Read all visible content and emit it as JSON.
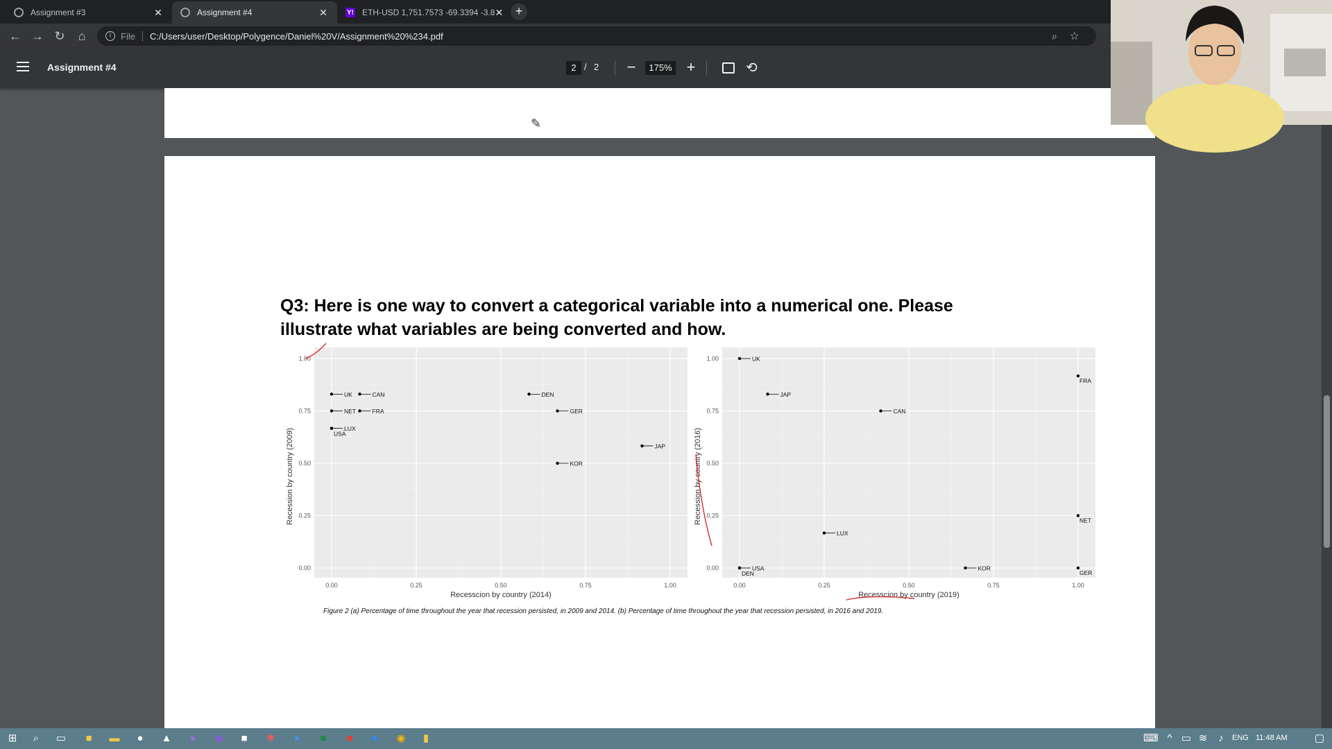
{
  "tabs": [
    {
      "title": "Assignment #3",
      "close": "✕"
    },
    {
      "title": "Assignment #4",
      "close": "✕"
    },
    {
      "title": "ETH-USD 1,751.7573 -69.3394 -3.8",
      "close": "✕",
      "favicon_text": "Y!"
    }
  ],
  "newtab_label": "+",
  "address": {
    "scheme": "File",
    "url": "C:/Users/user/Desktop/Polygence/Daniel%20V/Assignment%20%234.pdf"
  },
  "pdf_toolbar": {
    "title": "Assignment #4",
    "page_current": "2",
    "page_sep": "/",
    "page_total": "2",
    "zoom": "175%",
    "zoom_out": "−",
    "zoom_in": "+"
  },
  "question": "Q3: Here is one way to convert a categorical variable into a numerical one. Please illustrate what variables are being converted and how.",
  "caption": "Figure 2 (a) Percentage of time throughout the year that recession persisted, in 2009 and 2014. (b)  Percentage of time throughout the year that recession persisted, in 2016 and 2019.",
  "taskbar": {
    "lang": "ENG",
    "time": "11:48 AM"
  },
  "colors": {
    "panel_bg": "#ebebeb",
    "grid": "#ffffff",
    "annotation": "#d33030"
  },
  "chart_data": [
    {
      "type": "scatter",
      "xlabel": "Recesscion by country (2014)",
      "ylabel": "Recession by country (2009)",
      "xlim": [
        0,
        1
      ],
      "ylim": [
        0,
        1
      ],
      "xticks": [
        "0.00",
        "0.25",
        "0.50",
        "0.75",
        "1.00"
      ],
      "yticks": [
        "0.00",
        "0.25",
        "0.50",
        "0.75",
        "1.00"
      ],
      "grid": true,
      "points": [
        {
          "label": "UK",
          "x": 0.0,
          "y": 0.83
        },
        {
          "label": "CAN",
          "x": 0.083,
          "y": 0.83
        },
        {
          "label": "NET",
          "x": 0.0,
          "y": 0.75
        },
        {
          "label": "FRA",
          "x": 0.083,
          "y": 0.75
        },
        {
          "label": "LUX",
          "x": 0.0,
          "y": 0.667
        },
        {
          "label": "USA",
          "x": 0.0,
          "y": 0.667
        },
        {
          "label": "DEN",
          "x": 0.583,
          "y": 0.83
        },
        {
          "label": "GER",
          "x": 0.667,
          "y": 0.75
        },
        {
          "label": "KOR",
          "x": 0.667,
          "y": 0.5
        },
        {
          "label": "JAP",
          "x": 0.917,
          "y": 0.583
        }
      ]
    },
    {
      "type": "scatter",
      "xlabel": "Recesscion by country (2019)",
      "ylabel": "Recession by country (2016)",
      "xlim": [
        0,
        1
      ],
      "ylim": [
        0,
        1
      ],
      "xticks": [
        "0.00",
        "0.25",
        "0.50",
        "0.75",
        "1.00"
      ],
      "yticks": [
        "0.00",
        "0.25",
        "0.50",
        "0.75",
        "1.00"
      ],
      "grid": true,
      "points": [
        {
          "label": "UK",
          "x": 0.0,
          "y": 1.0
        },
        {
          "label": "FRA",
          "x": 1.0,
          "y": 0.917
        },
        {
          "label": "JAP",
          "x": 0.083,
          "y": 0.83
        },
        {
          "label": "CAN",
          "x": 0.417,
          "y": 0.75
        },
        {
          "label": "NET",
          "x": 1.0,
          "y": 0.25
        },
        {
          "label": "LUX",
          "x": 0.25,
          "y": 0.167
        },
        {
          "label": "USA",
          "x": 0.0,
          "y": 0.0
        },
        {
          "label": "DEN",
          "x": 0.0,
          "y": 0.0
        },
        {
          "label": "KOR",
          "x": 0.667,
          "y": 0.0
        },
        {
          "label": "GER",
          "x": 1.0,
          "y": 0.0
        }
      ]
    }
  ]
}
